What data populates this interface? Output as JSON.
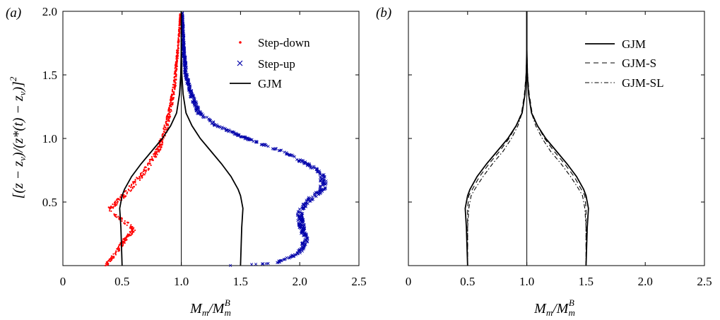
{
  "chart_data": [
    {
      "panel_label": "(a)",
      "type": "scatter",
      "xlabel": "M_m/M_m^B",
      "ylabel": "[(z − z_v)/(z*(t) − z_v)]^2",
      "xlim": [
        0,
        2.5
      ],
      "ylim": [
        0,
        2.0
      ],
      "xticks": [
        "0",
        "0.5",
        "1.0",
        "1.5",
        "2.0",
        "2.5"
      ],
      "yticks": [
        "0.5",
        "1.0",
        "1.5",
        "2.0"
      ],
      "reference_line_x": 1.0,
      "legend_position": "top-right",
      "series": [
        {
          "name": "Step-down",
          "marker": "dot",
          "color": "#ff0000",
          "x": [
            0.36,
            0.45,
            0.52,
            0.6,
            0.52,
            0.43,
            0.4,
            0.48,
            0.58,
            0.7,
            0.8,
            0.86,
            0.9,
            0.94,
            0.96,
            0.98,
            0.99
          ],
          "y": [
            0.0,
            0.1,
            0.2,
            0.28,
            0.35,
            0.4,
            0.45,
            0.52,
            0.62,
            0.75,
            0.9,
            1.05,
            1.2,
            1.4,
            1.6,
            1.8,
            1.98
          ]
        },
        {
          "name": "Step-up",
          "marker": "x",
          "color": "#0000aa",
          "x": [
            1.4,
            1.8,
            2.0,
            2.05,
            2.02,
            2.0,
            2.04,
            2.12,
            2.2,
            2.2,
            2.1,
            1.85,
            1.55,
            1.3,
            1.15,
            1.08,
            1.04,
            1.02,
            1.01
          ],
          "y": [
            0.0,
            0.02,
            0.1,
            0.2,
            0.3,
            0.4,
            0.48,
            0.55,
            0.6,
            0.7,
            0.78,
            0.9,
            1.0,
            1.1,
            1.2,
            1.35,
            1.5,
            1.7,
            1.98
          ]
        },
        {
          "name": "GJM",
          "marker": "line",
          "color": "#000000",
          "x": [
            0.5,
            0.49,
            0.48,
            0.5,
            0.52,
            0.58,
            0.66,
            0.75,
            0.84,
            0.91,
            0.96,
            0.985,
            0.995,
            1.0,
            1.0
          ],
          "y": [
            0.0,
            0.3,
            0.45,
            0.55,
            0.6,
            0.7,
            0.8,
            0.9,
            1.0,
            1.1,
            1.2,
            1.35,
            1.5,
            1.7,
            2.0
          ]
        },
        {
          "name": "GJM",
          "marker": "line-mirror",
          "color": "#000000",
          "x": [
            1.5,
            1.51,
            1.52,
            1.5,
            1.48,
            1.42,
            1.34,
            1.25,
            1.16,
            1.09,
            1.04,
            1.015,
            1.005,
            1.0,
            1.0
          ],
          "y": [
            0.0,
            0.3,
            0.45,
            0.55,
            0.6,
            0.7,
            0.8,
            0.9,
            1.0,
            1.1,
            1.2,
            1.35,
            1.5,
            1.7,
            2.0
          ]
        }
      ]
    },
    {
      "panel_label": "(b)",
      "type": "line",
      "xlabel": "M_m/M_m^B",
      "xlim": [
        0,
        2.5
      ],
      "ylim": [
        0,
        2.0
      ],
      "xticks": [
        "0",
        "0.5",
        "1.0",
        "1.5",
        "2.0",
        "2.5"
      ],
      "reference_line_x": 1.0,
      "legend_position": "top-right",
      "series": [
        {
          "name": "GJM",
          "style": "solid",
          "color": "#000000",
          "x": [
            0.5,
            0.49,
            0.48,
            0.5,
            0.52,
            0.58,
            0.66,
            0.75,
            0.84,
            0.91,
            0.96,
            0.985,
            0.995,
            1.0,
            1.0
          ],
          "y": [
            0.0,
            0.3,
            0.45,
            0.55,
            0.6,
            0.7,
            0.8,
            0.9,
            1.0,
            1.1,
            1.2,
            1.35,
            1.5,
            1.7,
            2.0
          ]
        },
        {
          "name": "GJM-S",
          "style": "dashed",
          "color": "#000000",
          "x": [
            0.5,
            0.5,
            0.5,
            0.51,
            0.54,
            0.6,
            0.68,
            0.77,
            0.85,
            0.91,
            0.955,
            0.98,
            0.993,
            1.0,
            1.0
          ],
          "y": [
            0.0,
            0.3,
            0.45,
            0.55,
            0.6,
            0.7,
            0.8,
            0.9,
            1.0,
            1.1,
            1.2,
            1.35,
            1.5,
            1.7,
            2.0
          ]
        },
        {
          "name": "GJM-SL",
          "style": "dashdot",
          "color": "#000000",
          "x": [
            0.5,
            0.5,
            0.51,
            0.53,
            0.56,
            0.63,
            0.71,
            0.8,
            0.87,
            0.925,
            0.96,
            0.985,
            0.995,
            1.0,
            1.0
          ],
          "y": [
            0.0,
            0.3,
            0.45,
            0.55,
            0.6,
            0.7,
            0.8,
            0.9,
            1.0,
            1.1,
            1.2,
            1.35,
            1.5,
            1.7,
            2.0
          ]
        }
      ]
    }
  ],
  "legend_labels": {
    "a": [
      "Step-down",
      "Step-up",
      "GJM"
    ],
    "b": [
      "GJM",
      "GJM-S",
      "GJM-SL"
    ]
  }
}
